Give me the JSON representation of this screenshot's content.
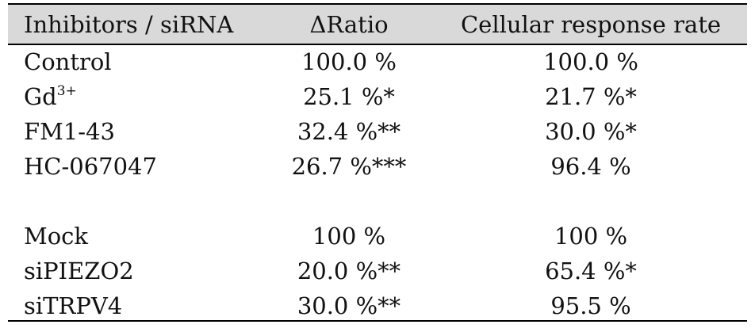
{
  "table": {
    "header": [
      "Inhibitors / siRNA",
      "ΔRatio",
      "Cellular response rate"
    ],
    "groups": [
      {
        "rows": [
          [
            {
              "text": "Control"
            },
            "100.0 %",
            "100.0 %"
          ],
          [
            {
              "text": "Gd",
              "sup": "3+"
            },
            "25.1 %*",
            "21.7 %*"
          ],
          [
            {
              "text": "FM1-43"
            },
            "32.4 %**",
            "30.0 %*"
          ],
          [
            {
              "text": "HC-067047"
            },
            "26.7 %***",
            "96.4 %"
          ]
        ]
      },
      {
        "rows": [
          [
            {
              "text": "Mock"
            },
            "100 %",
            "100 %"
          ],
          [
            {
              "text": "siPIEZO2"
            },
            "20.0 %**",
            "65.4 %*"
          ],
          [
            {
              "text": "siTRPV4"
            },
            "30.0 %**",
            "95.5 %"
          ]
        ]
      }
    ]
  }
}
